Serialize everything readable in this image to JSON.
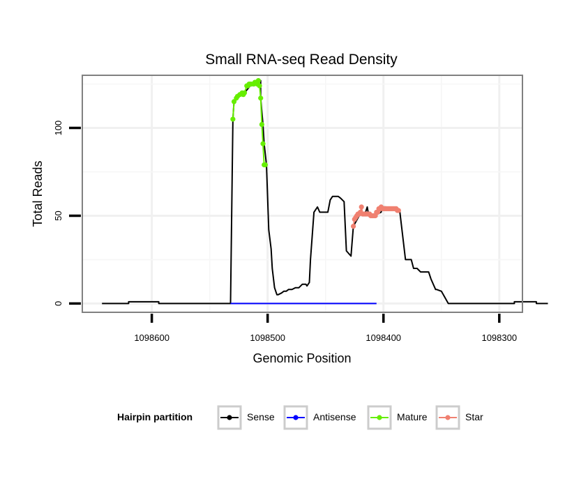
{
  "chart_data": {
    "type": "line",
    "title": "Small RNA-seq Read Density",
    "xlabel": "Genomic Position",
    "ylabel": "Total Reads",
    "x_reversed": true,
    "xlim": [
      1098660,
      1098280
    ],
    "ylim": [
      -5,
      130
    ],
    "x_ticks": [
      {
        "value": 1098600,
        "label": "1098600"
      },
      {
        "value": 1098500,
        "label": "1098500"
      },
      {
        "value": 1098400,
        "label": "1098400"
      },
      {
        "value": 1098300,
        "label": "1098300"
      }
    ],
    "y_ticks": [
      {
        "value": 0,
        "label": "0"
      },
      {
        "value": 50,
        "label": "50"
      },
      {
        "value": 100,
        "label": "100"
      }
    ],
    "grid": true,
    "legend": {
      "title": "Hairpin partition",
      "placement": "bottom",
      "entries": [
        {
          "name": "Sense",
          "color": "#000000"
        },
        {
          "name": "Antisense",
          "color": "#0000ff"
        },
        {
          "name": "Mature",
          "color": "#66ee00"
        },
        {
          "name": "Star",
          "color": "#f08070"
        }
      ]
    },
    "series": [
      {
        "name": "Sense",
        "color": "#000000",
        "x": [
          1098643,
          1098620,
          1098620,
          1098594,
          1098594,
          1098532,
          1098530,
          1098529,
          1098527,
          1098524,
          1098520,
          1098515,
          1098512,
          1098510,
          1098508,
          1098506,
          1098506,
          1098504,
          1098503,
          1098501,
          1098499,
          1098497,
          1098496,
          1098494,
          1098492,
          1098491,
          1098488,
          1098486,
          1098484,
          1098482,
          1098479,
          1098476,
          1098473,
          1098470,
          1098467,
          1098466,
          1098464,
          1098463,
          1098460,
          1098457,
          1098455,
          1098452,
          1098450,
          1098448,
          1098446,
          1098444,
          1098442,
          1098441,
          1098439,
          1098437,
          1098434,
          1098432,
          1098428,
          1098426,
          1098421,
          1098418,
          1098416,
          1098414,
          1098413,
          1098411,
          1098410,
          1098408,
          1098402,
          1098401,
          1098398,
          1098398,
          1098394,
          1098389,
          1098387,
          1098386,
          1098381,
          1098376,
          1098374,
          1098371,
          1098368,
          1098365,
          1098363,
          1098361,
          1098359,
          1098355,
          1098354,
          1098350,
          1098344,
          1098340,
          1098336,
          1098333,
          1098330,
          1098328,
          1098326,
          1098323,
          1098313,
          1098309,
          1098287,
          1098287,
          1098268,
          1098268,
          1098258
        ],
        "y": [
          0,
          0,
          1,
          1,
          0,
          0,
          105,
          115,
          117,
          119,
          120,
          124,
          125,
          125,
          126,
          127,
          117,
          102,
          91,
          79,
          42,
          31,
          20,
          9,
          5,
          5,
          6,
          7,
          7,
          8,
          8,
          9,
          9,
          11,
          11,
          10,
          12,
          25,
          52,
          55,
          52,
          52,
          52,
          52,
          59,
          61,
          61,
          61,
          61,
          60,
          58,
          30,
          27,
          44,
          50,
          51,
          51,
          55,
          51,
          51,
          50,
          50,
          52,
          55,
          55,
          54,
          54,
          54,
          54,
          53,
          25,
          25,
          20,
          20,
          18,
          18,
          18,
          18,
          14,
          8,
          8,
          7,
          0,
          0,
          0,
          0,
          0,
          0,
          0,
          0,
          0,
          0,
          0,
          1,
          1,
          0,
          0
        ]
      },
      {
        "name": "Antisense",
        "color": "#0000ff",
        "x": [
          1098532,
          1098406
        ],
        "y": [
          0,
          0
        ]
      },
      {
        "name": "Mature",
        "color": "#66ee00",
        "x": [
          1098530,
          1098529,
          1098527,
          1098526,
          1098524,
          1098522,
          1098521,
          1098520,
          1098518,
          1098517,
          1098516,
          1098515,
          1098514,
          1098512,
          1098511,
          1098510,
          1098509,
          1098508,
          1098507,
          1098506,
          1098505,
          1098504,
          1098503,
          1098502
        ],
        "y": [
          105,
          115,
          117,
          118,
          119,
          120,
          119,
          120,
          124,
          124,
          125,
          125,
          125,
          125,
          126,
          126,
          125,
          127,
          124,
          117,
          102,
          91,
          79,
          79
        ]
      },
      {
        "name": "Star",
        "color": "#f08070",
        "x": [
          1098426,
          1098425,
          1098424,
          1098423,
          1098422,
          1098421,
          1098420,
          1098419,
          1098418,
          1098417,
          1098416,
          1098415,
          1098414,
          1098413,
          1098412,
          1098411,
          1098410,
          1098409,
          1098408,
          1098407,
          1098406,
          1098405,
          1098404,
          1098403,
          1098402,
          1098401,
          1098400,
          1098399,
          1098398,
          1098397,
          1098396,
          1098395,
          1098394,
          1098393,
          1098392,
          1098391,
          1098390,
          1098389,
          1098388,
          1098387
        ],
        "y": [
          44,
          48,
          49,
          50,
          51,
          51,
          52,
          55,
          51,
          51,
          51,
          51,
          51,
          51,
          51,
          50,
          50,
          50,
          50,
          50,
          52,
          52,
          54,
          54,
          55,
          54,
          54,
          54,
          54,
          54,
          54,
          54,
          54,
          54,
          54,
          54,
          54,
          54,
          53,
          53
        ]
      }
    ]
  }
}
